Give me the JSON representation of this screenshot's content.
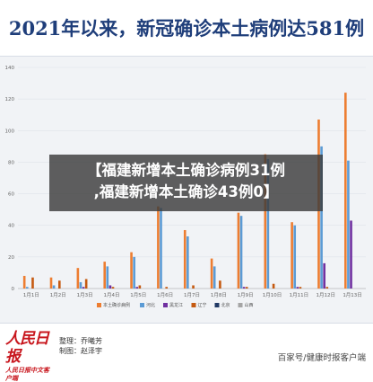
{
  "header": {
    "title": "2021年以来，新冠确诊本土病例达581例"
  },
  "overlay": {
    "line1": "【福建新增本土确诊病例31例",
    "line2": ",福建新增本土确诊43例0】"
  },
  "footer": {
    "logo_main": "人民日报",
    "logo_sub": "人民日报中文客户端",
    "editor": "整理：乔曦芳",
    "producer": "制图：赵泽宇",
    "source": "百家号/健康时报客户端"
  },
  "chart_data": {
    "type": "bar",
    "categories": [
      "1月1日",
      "1月2日",
      "1月3日",
      "1月4日",
      "1月5日",
      "1月6日",
      "1月7日",
      "1月8日",
      "1月9日",
      "1月10日",
      "1月11日",
      "1月12日",
      "1月13日"
    ],
    "yticks": [
      0,
      20,
      40,
      60,
      80,
      100,
      120,
      140
    ],
    "ylim": [
      0,
      140
    ],
    "colors": [
      "#ed7d31",
      "#5b9bd5",
      "#7030a0",
      "#c55a11",
      "#203864",
      "#a5a5a5"
    ],
    "series": [
      {
        "name": "本土确诊病例",
        "values": [
          8,
          7,
          13,
          17,
          23,
          52,
          37,
          19,
          48,
          85,
          42,
          107,
          124
        ]
      },
      {
        "name": "河北",
        "values": [
          1,
          2,
          4,
          14,
          20,
          51,
          33,
          14,
          46,
          82,
          40,
          90,
          81
        ]
      },
      {
        "name": "黑龙江",
        "values": [
          0,
          0,
          1,
          2,
          1,
          0,
          0,
          0,
          1,
          0,
          1,
          16,
          43
        ]
      },
      {
        "name": "辽宁",
        "values": [
          7,
          5,
          6,
          1,
          2,
          1,
          2,
          5,
          1,
          3,
          1,
          1,
          0
        ]
      },
      {
        "name": "北京",
        "values": [
          0,
          0,
          0,
          0,
          0,
          0,
          0,
          0,
          0,
          0,
          0,
          0,
          0
        ]
      },
      {
        "name": "山西",
        "values": [
          0,
          0,
          0,
          0,
          0,
          0,
          0,
          0,
          0,
          0,
          0,
          0,
          0
        ]
      }
    ]
  }
}
